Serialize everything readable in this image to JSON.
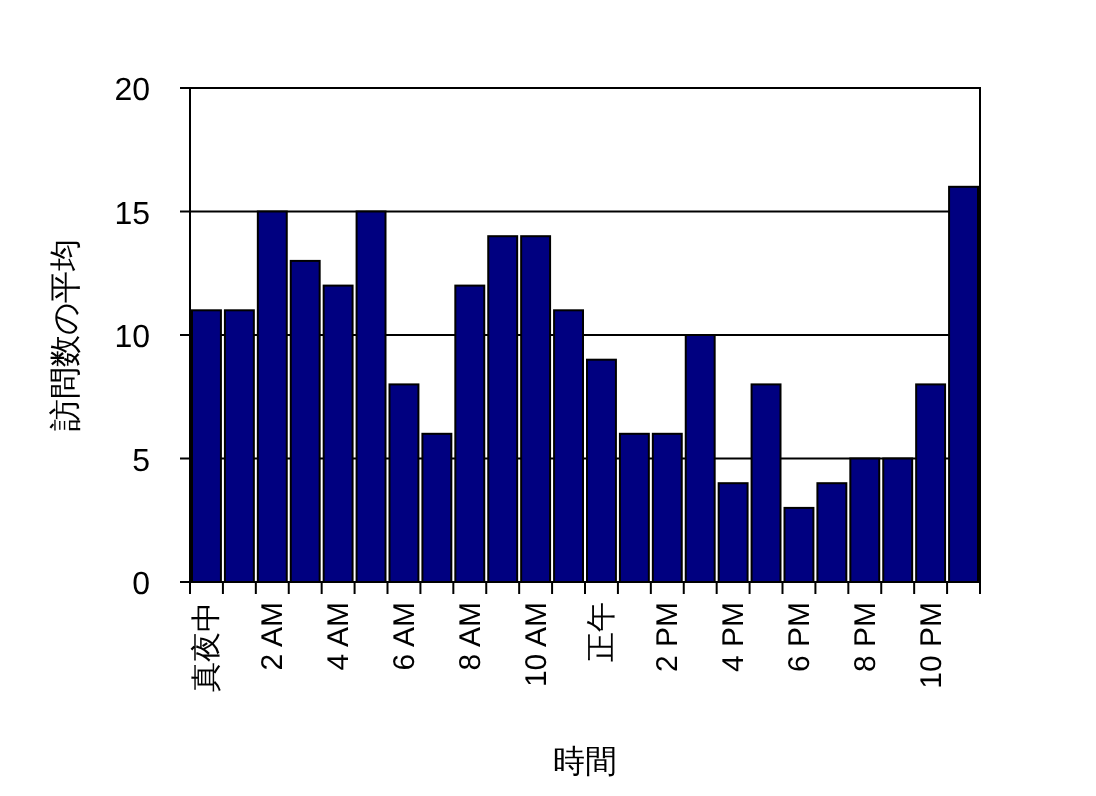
{
  "chart_data": {
    "type": "bar",
    "xlabel": "時間",
    "ylabel": "訪問数の平均",
    "categories": [
      "真夜中",
      null,
      "2 AM",
      null,
      "4 AM",
      null,
      "6 AM",
      null,
      "8 AM",
      null,
      "10 AM",
      null,
      "正午",
      null,
      "2 PM",
      null,
      "4 PM",
      null,
      "6 PM",
      null,
      "8 PM",
      null,
      "10 PM",
      null
    ],
    "values": [
      11,
      11,
      15,
      13,
      12,
      15,
      8,
      6,
      12,
      14,
      14,
      11,
      9,
      6,
      6,
      10,
      4,
      8,
      3,
      4,
      5,
      5,
      8,
      16
    ],
    "color": "#000080",
    "ylim": [
      0,
      20
    ],
    "yticks": [
      0,
      5,
      10,
      15,
      20
    ],
    "grid": "y"
  }
}
